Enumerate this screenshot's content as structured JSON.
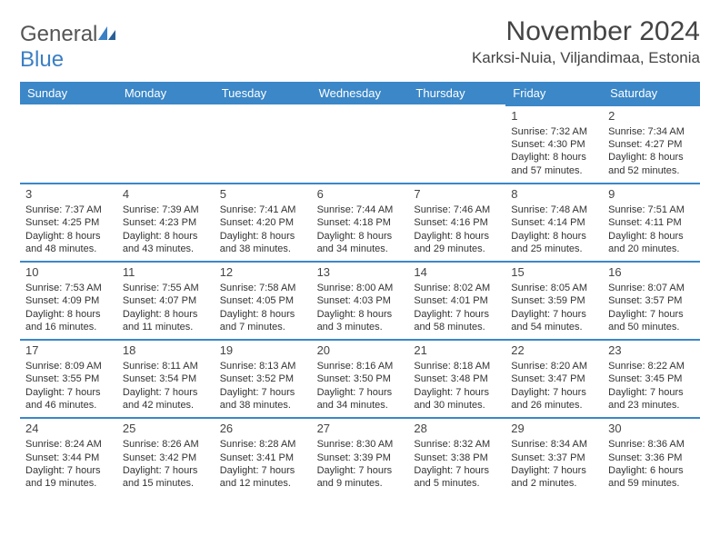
{
  "logo": {
    "word1": "General",
    "word2": "Blue"
  },
  "title": "November 2024",
  "location": "Karksi-Nuia, Viljandimaa, Estonia",
  "colors": {
    "brand": "#3b87c8",
    "text": "#333333",
    "header_text": "#ffffff",
    "bg": "#ffffff"
  },
  "weekdays": [
    "Sunday",
    "Monday",
    "Tuesday",
    "Wednesday",
    "Thursday",
    "Friday",
    "Saturday"
  ],
  "weeks": [
    [
      null,
      null,
      null,
      null,
      null,
      {
        "n": "1",
        "sr": "Sunrise: 7:32 AM",
        "ss": "Sunset: 4:30 PM",
        "d1": "Daylight: 8 hours",
        "d2": "and 57 minutes."
      },
      {
        "n": "2",
        "sr": "Sunrise: 7:34 AM",
        "ss": "Sunset: 4:27 PM",
        "d1": "Daylight: 8 hours",
        "d2": "and 52 minutes."
      }
    ],
    [
      {
        "n": "3",
        "sr": "Sunrise: 7:37 AM",
        "ss": "Sunset: 4:25 PM",
        "d1": "Daylight: 8 hours",
        "d2": "and 48 minutes."
      },
      {
        "n": "4",
        "sr": "Sunrise: 7:39 AM",
        "ss": "Sunset: 4:23 PM",
        "d1": "Daylight: 8 hours",
        "d2": "and 43 minutes."
      },
      {
        "n": "5",
        "sr": "Sunrise: 7:41 AM",
        "ss": "Sunset: 4:20 PM",
        "d1": "Daylight: 8 hours",
        "d2": "and 38 minutes."
      },
      {
        "n": "6",
        "sr": "Sunrise: 7:44 AM",
        "ss": "Sunset: 4:18 PM",
        "d1": "Daylight: 8 hours",
        "d2": "and 34 minutes."
      },
      {
        "n": "7",
        "sr": "Sunrise: 7:46 AM",
        "ss": "Sunset: 4:16 PM",
        "d1": "Daylight: 8 hours",
        "d2": "and 29 minutes."
      },
      {
        "n": "8",
        "sr": "Sunrise: 7:48 AM",
        "ss": "Sunset: 4:14 PM",
        "d1": "Daylight: 8 hours",
        "d2": "and 25 minutes."
      },
      {
        "n": "9",
        "sr": "Sunrise: 7:51 AM",
        "ss": "Sunset: 4:11 PM",
        "d1": "Daylight: 8 hours",
        "d2": "and 20 minutes."
      }
    ],
    [
      {
        "n": "10",
        "sr": "Sunrise: 7:53 AM",
        "ss": "Sunset: 4:09 PM",
        "d1": "Daylight: 8 hours",
        "d2": "and 16 minutes."
      },
      {
        "n": "11",
        "sr": "Sunrise: 7:55 AM",
        "ss": "Sunset: 4:07 PM",
        "d1": "Daylight: 8 hours",
        "d2": "and 11 minutes."
      },
      {
        "n": "12",
        "sr": "Sunrise: 7:58 AM",
        "ss": "Sunset: 4:05 PM",
        "d1": "Daylight: 8 hours",
        "d2": "and 7 minutes."
      },
      {
        "n": "13",
        "sr": "Sunrise: 8:00 AM",
        "ss": "Sunset: 4:03 PM",
        "d1": "Daylight: 8 hours",
        "d2": "and 3 minutes."
      },
      {
        "n": "14",
        "sr": "Sunrise: 8:02 AM",
        "ss": "Sunset: 4:01 PM",
        "d1": "Daylight: 7 hours",
        "d2": "and 58 minutes."
      },
      {
        "n": "15",
        "sr": "Sunrise: 8:05 AM",
        "ss": "Sunset: 3:59 PM",
        "d1": "Daylight: 7 hours",
        "d2": "and 54 minutes."
      },
      {
        "n": "16",
        "sr": "Sunrise: 8:07 AM",
        "ss": "Sunset: 3:57 PM",
        "d1": "Daylight: 7 hours",
        "d2": "and 50 minutes."
      }
    ],
    [
      {
        "n": "17",
        "sr": "Sunrise: 8:09 AM",
        "ss": "Sunset: 3:55 PM",
        "d1": "Daylight: 7 hours",
        "d2": "and 46 minutes."
      },
      {
        "n": "18",
        "sr": "Sunrise: 8:11 AM",
        "ss": "Sunset: 3:54 PM",
        "d1": "Daylight: 7 hours",
        "d2": "and 42 minutes."
      },
      {
        "n": "19",
        "sr": "Sunrise: 8:13 AM",
        "ss": "Sunset: 3:52 PM",
        "d1": "Daylight: 7 hours",
        "d2": "and 38 minutes."
      },
      {
        "n": "20",
        "sr": "Sunrise: 8:16 AM",
        "ss": "Sunset: 3:50 PM",
        "d1": "Daylight: 7 hours",
        "d2": "and 34 minutes."
      },
      {
        "n": "21",
        "sr": "Sunrise: 8:18 AM",
        "ss": "Sunset: 3:48 PM",
        "d1": "Daylight: 7 hours",
        "d2": "and 30 minutes."
      },
      {
        "n": "22",
        "sr": "Sunrise: 8:20 AM",
        "ss": "Sunset: 3:47 PM",
        "d1": "Daylight: 7 hours",
        "d2": "and 26 minutes."
      },
      {
        "n": "23",
        "sr": "Sunrise: 8:22 AM",
        "ss": "Sunset: 3:45 PM",
        "d1": "Daylight: 7 hours",
        "d2": "and 23 minutes."
      }
    ],
    [
      {
        "n": "24",
        "sr": "Sunrise: 8:24 AM",
        "ss": "Sunset: 3:44 PM",
        "d1": "Daylight: 7 hours",
        "d2": "and 19 minutes."
      },
      {
        "n": "25",
        "sr": "Sunrise: 8:26 AM",
        "ss": "Sunset: 3:42 PM",
        "d1": "Daylight: 7 hours",
        "d2": "and 15 minutes."
      },
      {
        "n": "26",
        "sr": "Sunrise: 8:28 AM",
        "ss": "Sunset: 3:41 PM",
        "d1": "Daylight: 7 hours",
        "d2": "and 12 minutes."
      },
      {
        "n": "27",
        "sr": "Sunrise: 8:30 AM",
        "ss": "Sunset: 3:39 PM",
        "d1": "Daylight: 7 hours",
        "d2": "and 9 minutes."
      },
      {
        "n": "28",
        "sr": "Sunrise: 8:32 AM",
        "ss": "Sunset: 3:38 PM",
        "d1": "Daylight: 7 hours",
        "d2": "and 5 minutes."
      },
      {
        "n": "29",
        "sr": "Sunrise: 8:34 AM",
        "ss": "Sunset: 3:37 PM",
        "d1": "Daylight: 7 hours",
        "d2": "and 2 minutes."
      },
      {
        "n": "30",
        "sr": "Sunrise: 8:36 AM",
        "ss": "Sunset: 3:36 PM",
        "d1": "Daylight: 6 hours",
        "d2": "and 59 minutes."
      }
    ]
  ]
}
